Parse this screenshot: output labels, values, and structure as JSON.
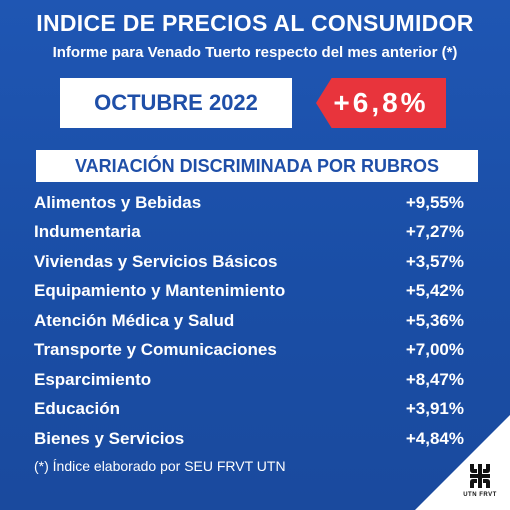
{
  "header": {
    "title": "INDICE DE PRECIOS AL CONSUMIDOR",
    "subtitle": "Informe para Venado Tuerto respecto del mes anterior (*)"
  },
  "period": {
    "month_label": "OCTUBRE 2022",
    "rate": "+6,8%",
    "rate_color": "#e8343c"
  },
  "section": {
    "title": "VARIACIÓN DISCRIMINADA POR RUBROS"
  },
  "rubros": [
    {
      "name": "Alimentos y Bebidas",
      "value": "+9,55%"
    },
    {
      "name": "Indumentaria",
      "value": "+7,27%"
    },
    {
      "name": "Viviendas y Servicios Básicos",
      "value": "+3,57%"
    },
    {
      "name": "Equipamiento y Mantenimiento",
      "value": "+5,42%"
    },
    {
      "name": "Atención Médica y Salud",
      "value": "+5,36%"
    },
    {
      "name": "Transporte y Comunicaciones",
      "value": "+7,00%"
    },
    {
      "name": "Esparcimiento",
      "value": "+8,47%"
    },
    {
      "name": "Educación",
      "value": "+3,91%"
    },
    {
      "name": "Bienes y Servicios",
      "value": "+4,84%"
    }
  ],
  "footnote": "(*) Índice elaborado por SEU FRVT UTN",
  "logo": {
    "text": "UTN FRVT",
    "icon": "utn-logo-icon"
  },
  "colors": {
    "background": "#1f56b3",
    "accent": "#1f4fa8",
    "text": "#ffffff"
  }
}
